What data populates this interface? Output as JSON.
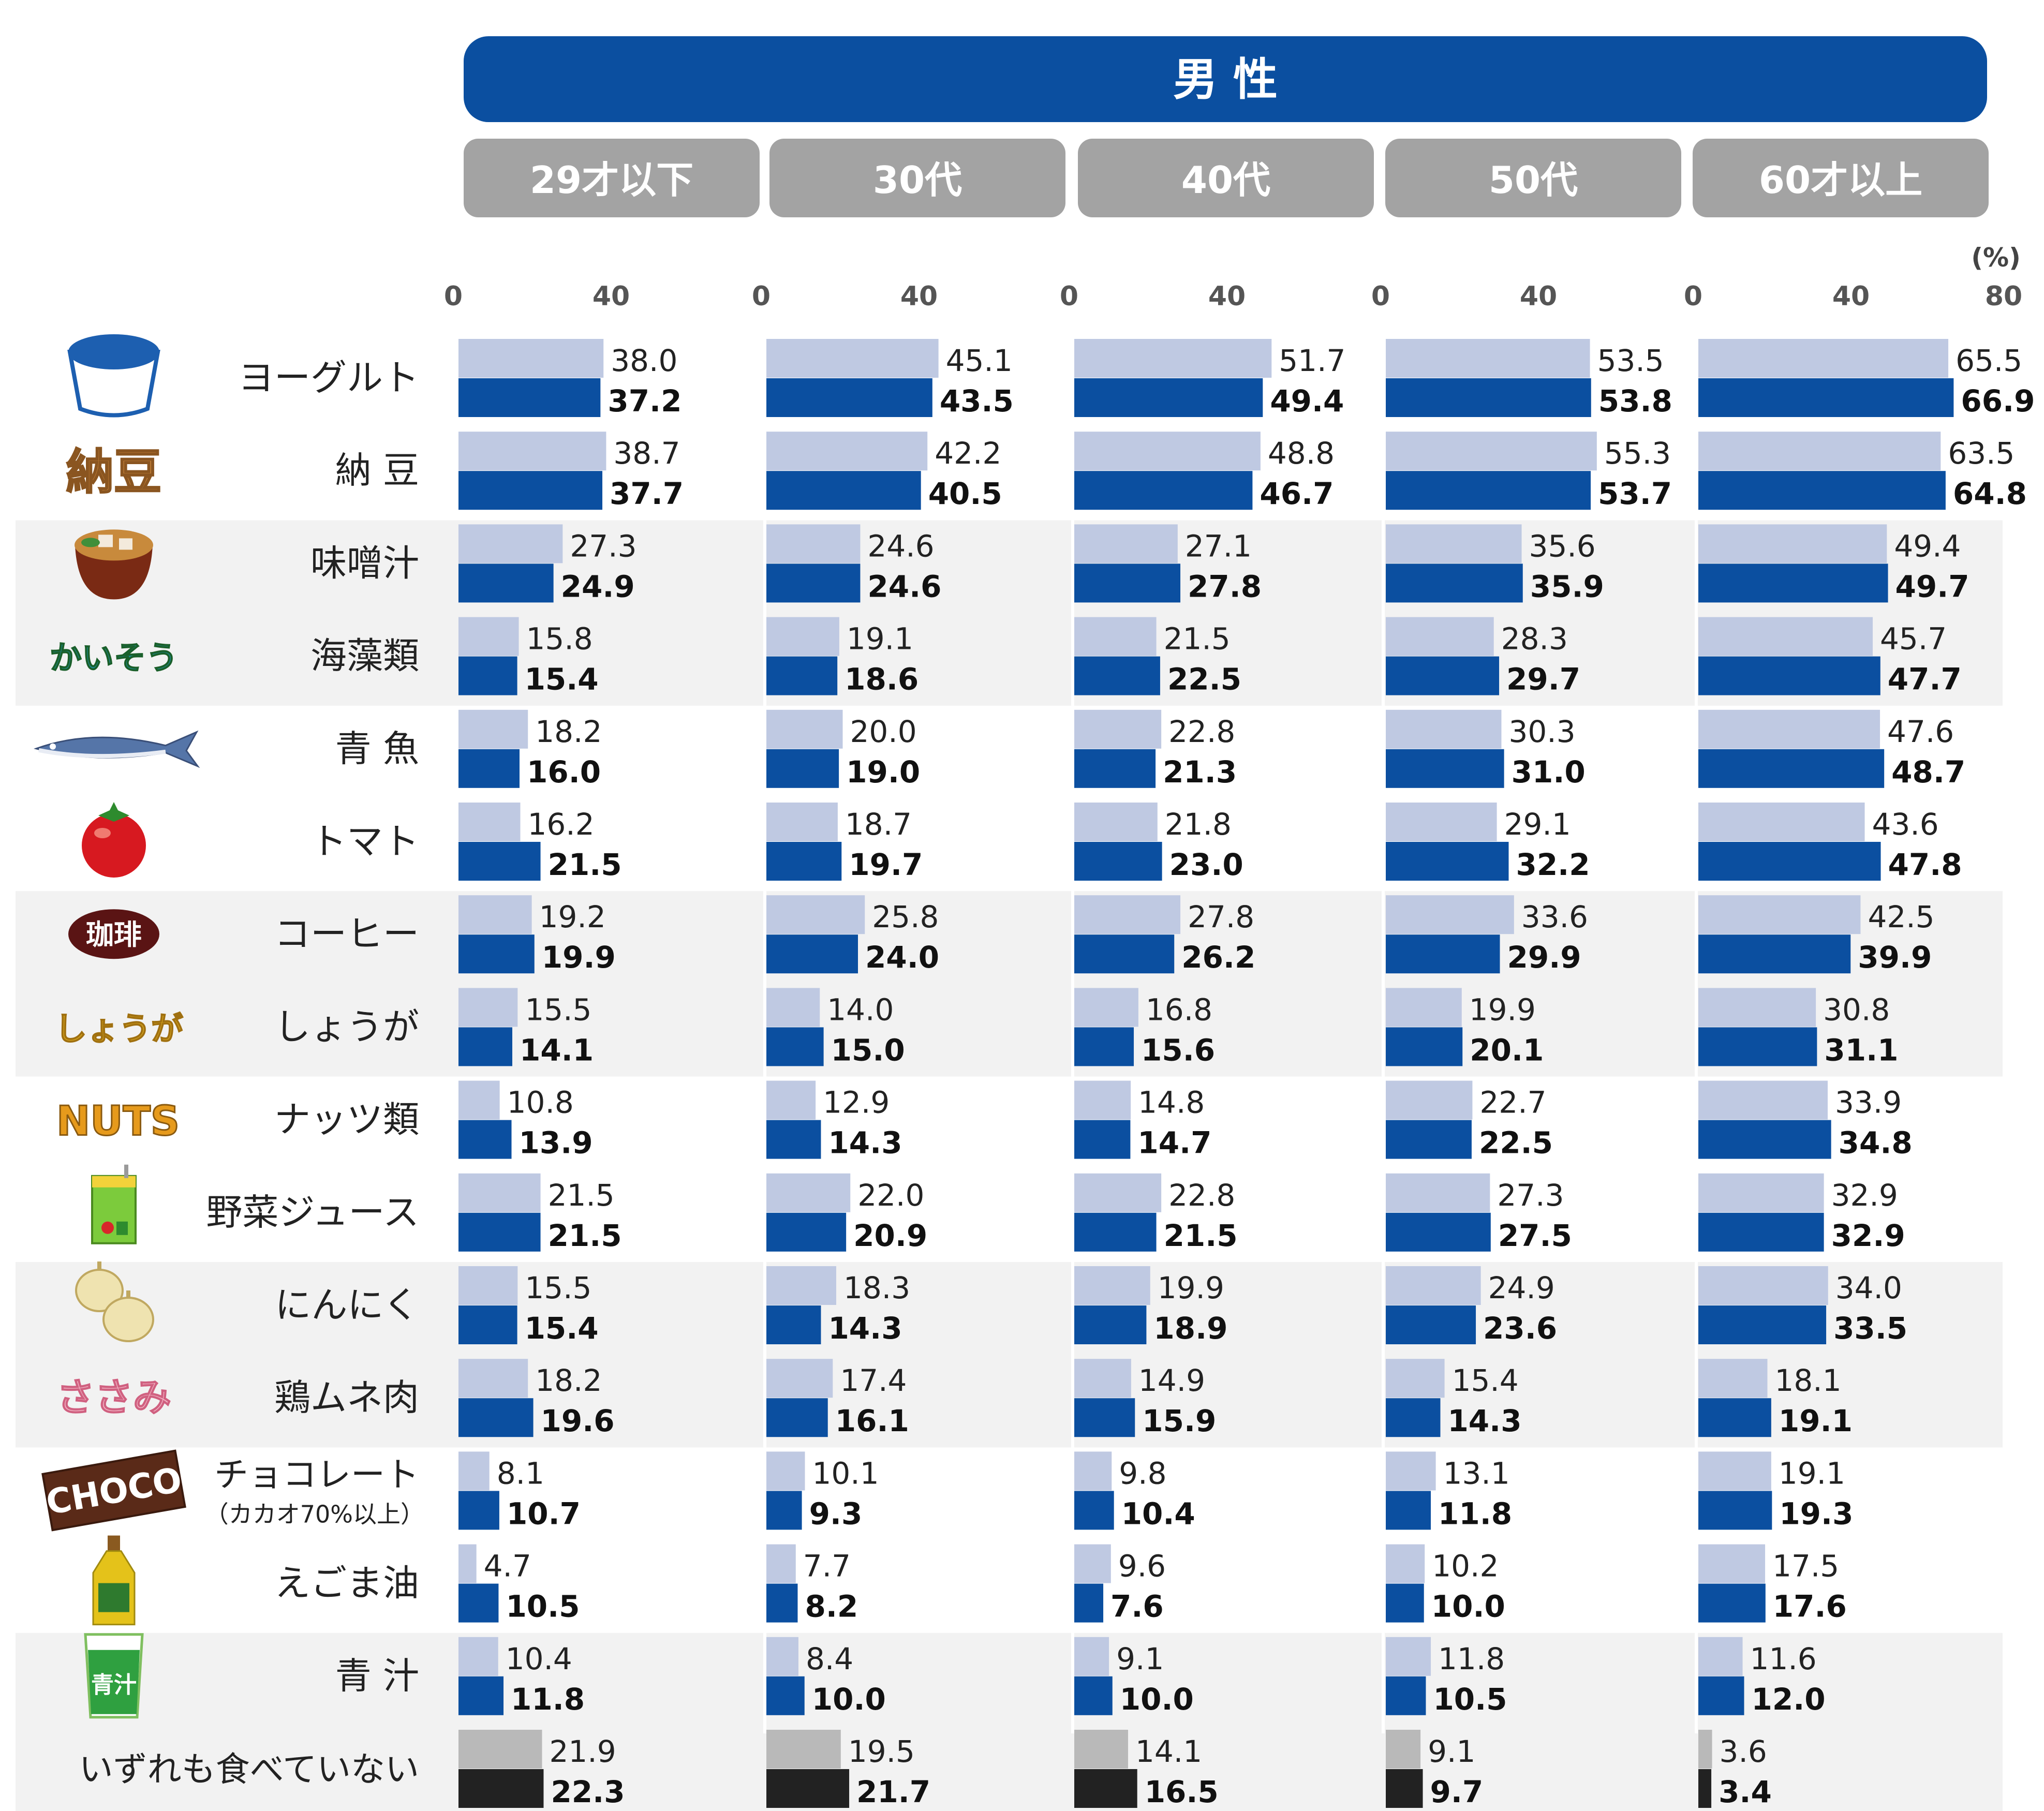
{
  "chart_data": {
    "type": "bar",
    "title": "男 性",
    "unit": "(%)",
    "xlim": [
      0,
      80
    ],
    "ticks": [
      "0",
      "40",
      "80"
    ],
    "groups": [
      "29才以下",
      "30代",
      "40代",
      "50代",
      "60才以上"
    ],
    "categories": [
      {
        "label": "ヨーグルト",
        "icon": "yogurt-icon",
        "values": [
          [
            38.0,
            37.2
          ],
          [
            45.1,
            43.5
          ],
          [
            51.7,
            49.4
          ],
          [
            53.5,
            53.8
          ],
          [
            65.5,
            66.9
          ]
        ]
      },
      {
        "label": "納 豆",
        "icon": "natto-icon",
        "icon_text": "納豆",
        "values": [
          [
            38.7,
            37.7
          ],
          [
            42.2,
            40.5
          ],
          [
            48.8,
            46.7
          ],
          [
            55.3,
            53.7
          ],
          [
            63.5,
            64.8
          ]
        ]
      },
      {
        "label": "味噌汁",
        "icon": "miso-soup-icon",
        "values": [
          [
            27.3,
            24.9
          ],
          [
            24.6,
            24.6
          ],
          [
            27.1,
            27.8
          ],
          [
            35.6,
            35.9
          ],
          [
            49.4,
            49.7
          ]
        ]
      },
      {
        "label": "海藻類",
        "icon": "seaweed-icon",
        "icon_text": "かいそう",
        "values": [
          [
            15.8,
            15.4
          ],
          [
            19.1,
            18.6
          ],
          [
            21.5,
            22.5
          ],
          [
            28.3,
            29.7
          ],
          [
            45.7,
            47.7
          ]
        ]
      },
      {
        "label": "青 魚",
        "icon": "fish-icon",
        "values": [
          [
            18.2,
            16.0
          ],
          [
            20.0,
            19.0
          ],
          [
            22.8,
            21.3
          ],
          [
            30.3,
            31.0
          ],
          [
            47.6,
            48.7
          ]
        ]
      },
      {
        "label": "トマト",
        "icon": "tomato-icon",
        "values": [
          [
            16.2,
            21.5
          ],
          [
            18.7,
            19.7
          ],
          [
            21.8,
            23.0
          ],
          [
            29.1,
            32.2
          ],
          [
            43.6,
            47.8
          ]
        ]
      },
      {
        "label": "コーヒー",
        "icon": "coffee-icon",
        "icon_text": "珈琲",
        "values": [
          [
            19.2,
            19.9
          ],
          [
            25.8,
            24.0
          ],
          [
            27.8,
            26.2
          ],
          [
            33.6,
            29.9
          ],
          [
            42.5,
            39.9
          ]
        ]
      },
      {
        "label": "しょうが",
        "icon": "ginger-icon",
        "icon_text": "しょうが",
        "values": [
          [
            15.5,
            14.1
          ],
          [
            14.0,
            15.0
          ],
          [
            16.8,
            15.6
          ],
          [
            19.9,
            20.1
          ],
          [
            30.8,
            31.1
          ]
        ]
      },
      {
        "label": "ナッツ類",
        "icon": "nuts-icon",
        "icon_text": "NUTS",
        "values": [
          [
            10.8,
            13.9
          ],
          [
            12.9,
            14.3
          ],
          [
            14.8,
            14.7
          ],
          [
            22.7,
            22.5
          ],
          [
            33.9,
            34.8
          ]
        ]
      },
      {
        "label": "野菜ジュース",
        "icon": "vegetable-juice-icon",
        "values": [
          [
            21.5,
            21.5
          ],
          [
            22.0,
            20.9
          ],
          [
            22.8,
            21.5
          ],
          [
            27.3,
            27.5
          ],
          [
            32.9,
            32.9
          ]
        ]
      },
      {
        "label": "にんにく",
        "icon": "garlic-icon",
        "values": [
          [
            15.5,
            15.4
          ],
          [
            18.3,
            14.3
          ],
          [
            19.9,
            18.9
          ],
          [
            24.9,
            23.6
          ],
          [
            34.0,
            33.5
          ]
        ]
      },
      {
        "label": "鶏ムネ肉",
        "icon": "chicken-breast-icon",
        "icon_text": "ささみ",
        "values": [
          [
            18.2,
            19.6
          ],
          [
            17.4,
            16.1
          ],
          [
            14.9,
            15.9
          ],
          [
            15.4,
            14.3
          ],
          [
            18.1,
            19.1
          ]
        ]
      },
      {
        "label": "チョコレート",
        "sublabel": "（カカオ70%以上）",
        "icon": "chocolate-icon",
        "icon_text": "CHOCO",
        "values": [
          [
            8.1,
            10.7
          ],
          [
            10.1,
            9.3
          ],
          [
            9.8,
            10.4
          ],
          [
            13.1,
            11.8
          ],
          [
            19.1,
            19.3
          ]
        ]
      },
      {
        "label": "えごま油",
        "icon": "egoma-oil-icon",
        "values": [
          [
            4.7,
            10.5
          ],
          [
            7.7,
            8.2
          ],
          [
            9.6,
            7.6
          ],
          [
            10.2,
            10.0
          ],
          [
            17.5,
            17.6
          ]
        ]
      },
      {
        "label": "青 汁",
        "icon": "aojiru-icon",
        "icon_text": "青汁",
        "values": [
          [
            10.4,
            11.8
          ],
          [
            8.4,
            10.0
          ],
          [
            9.1,
            10.0
          ],
          [
            11.8,
            10.5
          ],
          [
            11.6,
            12.0
          ]
        ]
      },
      {
        "label": "いずれも食べていない",
        "icon": "",
        "none_row": true,
        "values": [
          [
            21.9,
            22.3
          ],
          [
            19.5,
            21.7
          ],
          [
            14.1,
            16.5
          ],
          [
            9.1,
            9.7
          ],
          [
            3.6,
            3.4
          ]
        ]
      }
    ],
    "colors": {
      "header": "#0b4fa0",
      "group_header": "#a3a3a3",
      "bar_light": "#bfc9e2",
      "bar_dark": "#0b4fa0",
      "none_light": "#b9b9b9",
      "none_dark": "#222222",
      "stripe": "#f2f2f2"
    }
  }
}
